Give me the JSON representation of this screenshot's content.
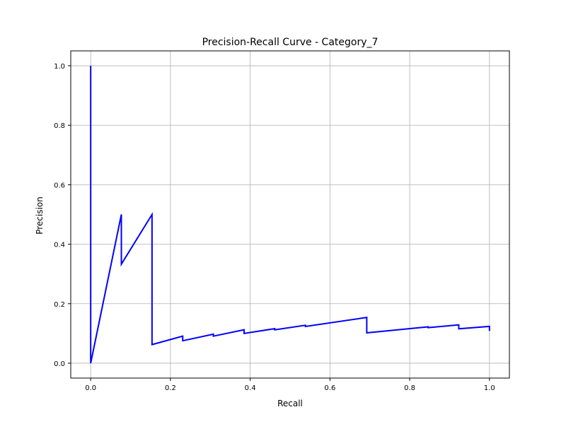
{
  "chart_data": {
    "type": "line",
    "title": "Precision-Recall Curve - Category_7",
    "xlabel": "Recall",
    "ylabel": "Precision",
    "xlim": [
      -0.05,
      1.05
    ],
    "ylim": [
      -0.05,
      1.05
    ],
    "xticks": [
      0.0,
      0.2,
      0.4,
      0.6,
      0.8,
      1.0
    ],
    "xtick_labels": [
      "0.0",
      "0.2",
      "0.4",
      "0.6",
      "0.8",
      "1.0"
    ],
    "yticks": [
      0.0,
      0.2,
      0.4,
      0.6,
      0.8,
      1.0
    ],
    "ytick_labels": [
      "0.0",
      "0.2",
      "0.4",
      "0.6",
      "0.8",
      "1.0"
    ],
    "grid": true,
    "series": [
      {
        "color": "#0000ff",
        "x": [
          0.0,
          0.0,
          0.0769,
          0.0769,
          0.1538,
          0.1538,
          0.2308,
          0.2308,
          0.3077,
          0.3077,
          0.3846,
          0.3846,
          0.4615,
          0.4615,
          0.5385,
          0.5385,
          0.6923,
          0.6923,
          0.8462,
          0.8462,
          0.9231,
          0.9231,
          1.0,
          1.0
        ],
        "y": [
          1.0,
          0.0,
          0.5,
          0.333,
          0.5,
          0.0625,
          0.091,
          0.0755,
          0.0976,
          0.0909,
          0.1124,
          0.1001,
          0.1161,
          0.1121,
          0.1276,
          0.1234,
          0.1538,
          0.102,
          0.1222,
          0.1195,
          0.1289,
          0.1156,
          0.1238,
          0.1083
        ]
      }
    ]
  }
}
